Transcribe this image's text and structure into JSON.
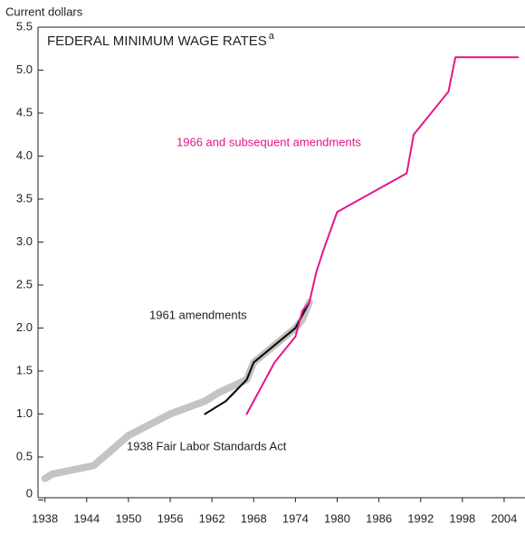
{
  "chart_data": {
    "type": "line",
    "title": "FEDERAL MINIMUM WAGE RATES",
    "title_note": "a",
    "y_label": "Current dollars",
    "xlim": [
      1937,
      2007
    ],
    "xticks": [
      1938,
      1944,
      1950,
      1956,
      1962,
      1968,
      1974,
      1980,
      1986,
      1992,
      1998,
      2004
    ],
    "ylim": [
      0,
      5.5
    ],
    "yticks": [
      0,
      0.5,
      {
        "value": 1,
        "label": "1.0"
      },
      1.5,
      {
        "value": 2,
        "label": "2.0"
      },
      2.5,
      {
        "value": 3,
        "label": "3.0"
      },
      3.5,
      {
        "value": 4,
        "label": "4.0"
      },
      4.5,
      {
        "value": 5,
        "label": "5.0"
      },
      5.5
    ],
    "series": [
      {
        "name": "1938 Fair Labor Standards Act",
        "color": "#c4c4c4",
        "x": [
          1938,
          1939,
          1945,
          1950,
          1956,
          1961,
          1963,
          1967,
          1968,
          1974,
          1975,
          1976
        ],
        "values": [
          0.25,
          0.3,
          0.4,
          0.75,
          1.0,
          1.15,
          1.25,
          1.4,
          1.6,
          2.0,
          2.1,
          2.3
        ]
      },
      {
        "name": "1961 amendments",
        "color": "#111111",
        "x": [
          1961,
          1964,
          1967,
          1968,
          1974,
          1976
        ],
        "values": [
          1.0,
          1.15,
          1.4,
          1.6,
          2.0,
          2.3
        ]
      },
      {
        "name": "1966 and subsequent amendments",
        "color": "#e5148a",
        "x": [
          1967,
          1969,
          1971,
          1974,
          1975,
          1976,
          1977,
          1978,
          1980,
          1990,
          1991,
          1996,
          1997,
          2006
        ],
        "values": [
          1.0,
          1.3,
          1.6,
          1.9,
          2.2,
          2.3,
          2.65,
          2.9,
          3.35,
          3.8,
          4.25,
          4.75,
          5.15,
          5.15
        ]
      }
    ]
  }
}
